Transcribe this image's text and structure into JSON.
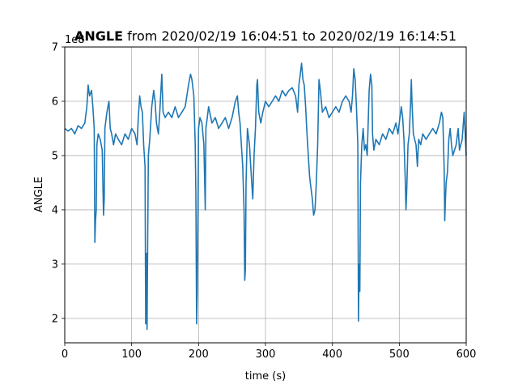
{
  "chart_data": {
    "type": "line",
    "title_bold": "ANGLE",
    "title_rest": " from 2020/02/19 16:04:51 to 2020/02/19 16:14:51",
    "xlabel": "time (s)",
    "ylabel": "ANGLE",
    "y_offset_label": "1e8",
    "xlim": [
      0,
      600
    ],
    "ylim": [
      1.55,
      7.0
    ],
    "x_ticks": [
      0,
      100,
      200,
      300,
      400,
      500,
      600
    ],
    "x_tick_labels": [
      "0",
      "100",
      "200",
      "300",
      "400",
      "500",
      "600"
    ],
    "y_ticks": [
      2,
      3,
      4,
      5,
      6,
      7
    ],
    "y_tick_labels": [
      "2",
      "3",
      "4",
      "5",
      "6",
      "7"
    ],
    "grid": true,
    "line_color": "#1f77b4",
    "series": [
      {
        "values": [
          [
            0,
            5.5
          ],
          [
            5,
            5.45
          ],
          [
            10,
            5.5
          ],
          [
            15,
            5.4
          ],
          [
            20,
            5.55
          ],
          [
            25,
            5.5
          ],
          [
            30,
            5.6
          ],
          [
            33,
            5.9
          ],
          [
            35,
            6.3
          ],
          [
            37,
            6.1
          ],
          [
            40,
            6.2
          ],
          [
            42,
            5.9
          ],
          [
            44,
            5.5
          ],
          [
            45,
            3.4
          ],
          [
            46,
            3.8
          ],
          [
            47,
            4.0
          ],
          [
            48,
            5.2
          ],
          [
            50,
            5.4
          ],
          [
            53,
            5.3
          ],
          [
            56,
            5.1
          ],
          [
            58,
            3.9
          ],
          [
            59,
            4.2
          ],
          [
            60,
            5.5
          ],
          [
            63,
            5.8
          ],
          [
            66,
            6.0
          ],
          [
            68,
            5.5
          ],
          [
            70,
            5.4
          ],
          [
            73,
            5.2
          ],
          [
            76,
            5.4
          ],
          [
            80,
            5.3
          ],
          [
            85,
            5.2
          ],
          [
            90,
            5.4
          ],
          [
            95,
            5.3
          ],
          [
            100,
            5.5
          ],
          [
            105,
            5.4
          ],
          [
            108,
            5.2
          ],
          [
            110,
            5.7
          ],
          [
            112,
            6.1
          ],
          [
            114,
            5.9
          ],
          [
            116,
            5.8
          ],
          [
            118,
            5.2
          ],
          [
            120,
            4.8
          ],
          [
            121,
            1.9
          ],
          [
            122,
            3.2
          ],
          [
            123,
            1.8
          ],
          [
            124,
            3.5
          ],
          [
            125,
            5.0
          ],
          [
            127,
            5.3
          ],
          [
            130,
            5.9
          ],
          [
            133,
            6.2
          ],
          [
            135,
            6.0
          ],
          [
            137,
            5.6
          ],
          [
            140,
            5.4
          ],
          [
            142,
            5.8
          ],
          [
            145,
            6.5
          ],
          [
            147,
            5.8
          ],
          [
            150,
            5.7
          ],
          [
            155,
            5.8
          ],
          [
            160,
            5.7
          ],
          [
            165,
            5.9
          ],
          [
            170,
            5.7
          ],
          [
            175,
            5.8
          ],
          [
            180,
            5.9
          ],
          [
            185,
            6.3
          ],
          [
            188,
            6.5
          ],
          [
            190,
            6.4
          ],
          [
            193,
            6.1
          ],
          [
            195,
            5.2
          ],
          [
            196,
            4.3
          ],
          [
            197,
            1.9
          ],
          [
            198,
            2.5
          ],
          [
            199,
            3.8
          ],
          [
            200,
            5.5
          ],
          [
            202,
            5.7
          ],
          [
            205,
            5.6
          ],
          [
            208,
            5.2
          ],
          [
            210,
            4.0
          ],
          [
            211,
            5.5
          ],
          [
            213,
            5.7
          ],
          [
            215,
            5.9
          ],
          [
            220,
            5.6
          ],
          [
            225,
            5.7
          ],
          [
            230,
            5.5
          ],
          [
            235,
            5.6
          ],
          [
            240,
            5.7
          ],
          [
            245,
            5.5
          ],
          [
            250,
            5.7
          ],
          [
            255,
            6.0
          ],
          [
            258,
            6.1
          ],
          [
            260,
            5.8
          ],
          [
            262,
            5.6
          ],
          [
            264,
            5.2
          ],
          [
            266,
            4.8
          ],
          [
            268,
            4.0
          ],
          [
            269,
            2.7
          ],
          [
            270,
            2.9
          ],
          [
            271,
            4.5
          ],
          [
            273,
            5.5
          ],
          [
            276,
            5.2
          ],
          [
            279,
            4.6
          ],
          [
            281,
            4.2
          ],
          [
            283,
            5.0
          ],
          [
            285,
            5.5
          ],
          [
            287,
            6.3
          ],
          [
            288,
            6.4
          ],
          [
            290,
            5.8
          ],
          [
            293,
            5.6
          ],
          [
            296,
            5.8
          ],
          [
            300,
            6.0
          ],
          [
            305,
            5.9
          ],
          [
            310,
            6.0
          ],
          [
            315,
            6.1
          ],
          [
            320,
            6.0
          ],
          [
            325,
            6.2
          ],
          [
            330,
            6.1
          ],
          [
            335,
            6.2
          ],
          [
            340,
            6.25
          ],
          [
            345,
            6.1
          ],
          [
            348,
            5.8
          ],
          [
            350,
            6.3
          ],
          [
            352,
            6.5
          ],
          [
            354,
            6.7
          ],
          [
            356,
            6.4
          ],
          [
            358,
            6.3
          ],
          [
            360,
            5.9
          ],
          [
            362,
            5.4
          ],
          [
            364,
            5.0
          ],
          [
            366,
            4.6
          ],
          [
            368,
            4.4
          ],
          [
            370,
            4.2
          ],
          [
            372,
            3.9
          ],
          [
            374,
            4.0
          ],
          [
            376,
            4.5
          ],
          [
            378,
            5.2
          ],
          [
            380,
            6.4
          ],
          [
            382,
            6.2
          ],
          [
            385,
            5.8
          ],
          [
            390,
            5.9
          ],
          [
            395,
            5.7
          ],
          [
            400,
            5.8
          ],
          [
            405,
            5.9
          ],
          [
            410,
            5.8
          ],
          [
            415,
            6.0
          ],
          [
            420,
            6.1
          ],
          [
            425,
            6.0
          ],
          [
            428,
            5.8
          ],
          [
            430,
            6.1
          ],
          [
            432,
            6.6
          ],
          [
            434,
            6.4
          ],
          [
            436,
            5.9
          ],
          [
            438,
            5.2
          ],
          [
            439,
            1.95
          ],
          [
            440,
            3.0
          ],
          [
            441,
            2.5
          ],
          [
            442,
            4.5
          ],
          [
            444,
            5.2
          ],
          [
            446,
            5.5
          ],
          [
            448,
            5.1
          ],
          [
            450,
            5.2
          ],
          [
            452,
            5.0
          ],
          [
            455,
            6.2
          ],
          [
            457,
            6.5
          ],
          [
            459,
            6.3
          ],
          [
            460,
            5.4
          ],
          [
            462,
            5.1
          ],
          [
            465,
            5.3
          ],
          [
            470,
            5.2
          ],
          [
            475,
            5.4
          ],
          [
            480,
            5.3
          ],
          [
            485,
            5.5
          ],
          [
            490,
            5.4
          ],
          [
            495,
            5.6
          ],
          [
            498,
            5.4
          ],
          [
            500,
            5.6
          ],
          [
            503,
            5.9
          ],
          [
            505,
            5.7
          ],
          [
            507,
            5.3
          ],
          [
            509,
            4.5
          ],
          [
            510,
            4.0
          ],
          [
            511,
            4.3
          ],
          [
            513,
            5.2
          ],
          [
            515,
            5.4
          ],
          [
            517,
            6.0
          ],
          [
            518,
            6.4
          ],
          [
            519,
            6.0
          ],
          [
            521,
            5.4
          ],
          [
            523,
            5.3
          ],
          [
            525,
            5.2
          ],
          [
            527,
            4.8
          ],
          [
            529,
            5.3
          ],
          [
            532,
            5.2
          ],
          [
            535,
            5.4
          ],
          [
            540,
            5.3
          ],
          [
            545,
            5.4
          ],
          [
            550,
            5.5
          ],
          [
            555,
            5.4
          ],
          [
            560,
            5.6
          ],
          [
            563,
            5.8
          ],
          [
            565,
            5.7
          ],
          [
            567,
            4.8
          ],
          [
            568,
            3.8
          ],
          [
            569,
            4.2
          ],
          [
            570,
            4.5
          ],
          [
            572,
            4.7
          ],
          [
            574,
            5.3
          ],
          [
            576,
            5.5
          ],
          [
            578,
            5.2
          ],
          [
            580,
            5.0
          ],
          [
            585,
            5.2
          ],
          [
            588,
            5.5
          ],
          [
            590,
            5.1
          ],
          [
            594,
            5.3
          ],
          [
            597,
            5.8
          ],
          [
            600,
            5.0
          ]
        ]
      }
    ]
  }
}
